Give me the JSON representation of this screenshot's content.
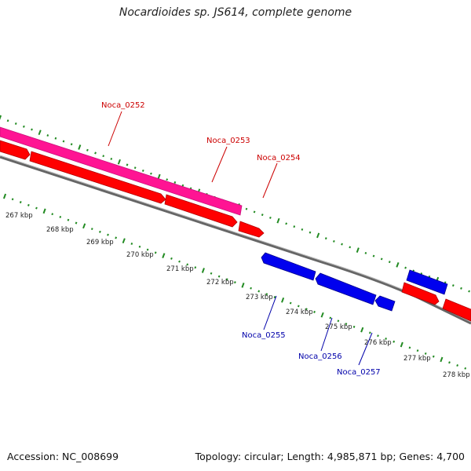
{
  "title": "Nocardioides sp. JS614, complete genome",
  "footer": {
    "accession": "Accession: NC_008699",
    "summary": "Topology: circular; Length: 4,985,871 bp; Genes: 4,700"
  },
  "scale": {
    "unit": "kbp",
    "ticks": [
      "267 kbp",
      "268 kbp",
      "269 kbp",
      "270 kbp",
      "271 kbp",
      "272 kbp",
      "273 kbp",
      "274 kbp",
      "275 kbp",
      "276 kbp",
      "277 kbp",
      "278 kbp"
    ]
  },
  "genes": [
    {
      "id": "Noca_0252",
      "strand": "forward",
      "color": "#cc0000"
    },
    {
      "id": "Noca_0253",
      "strand": "forward",
      "color": "#cc0000"
    },
    {
      "id": "Noca_0254",
      "strand": "forward",
      "color": "#cc0000"
    },
    {
      "id": "Noca_0255",
      "strand": "reverse",
      "color": "#0000aa"
    },
    {
      "id": "Noca_0256",
      "strand": "reverse",
      "color": "#0000aa"
    },
    {
      "id": "Noca_0257",
      "strand": "reverse",
      "color": "#0000aa"
    }
  ],
  "colors": {
    "forward_cds": "#ff0000",
    "reverse_cds": "#0000ee",
    "rna_feature": "#ff1493",
    "backbone": "#888888",
    "tick": "#228b22"
  }
}
